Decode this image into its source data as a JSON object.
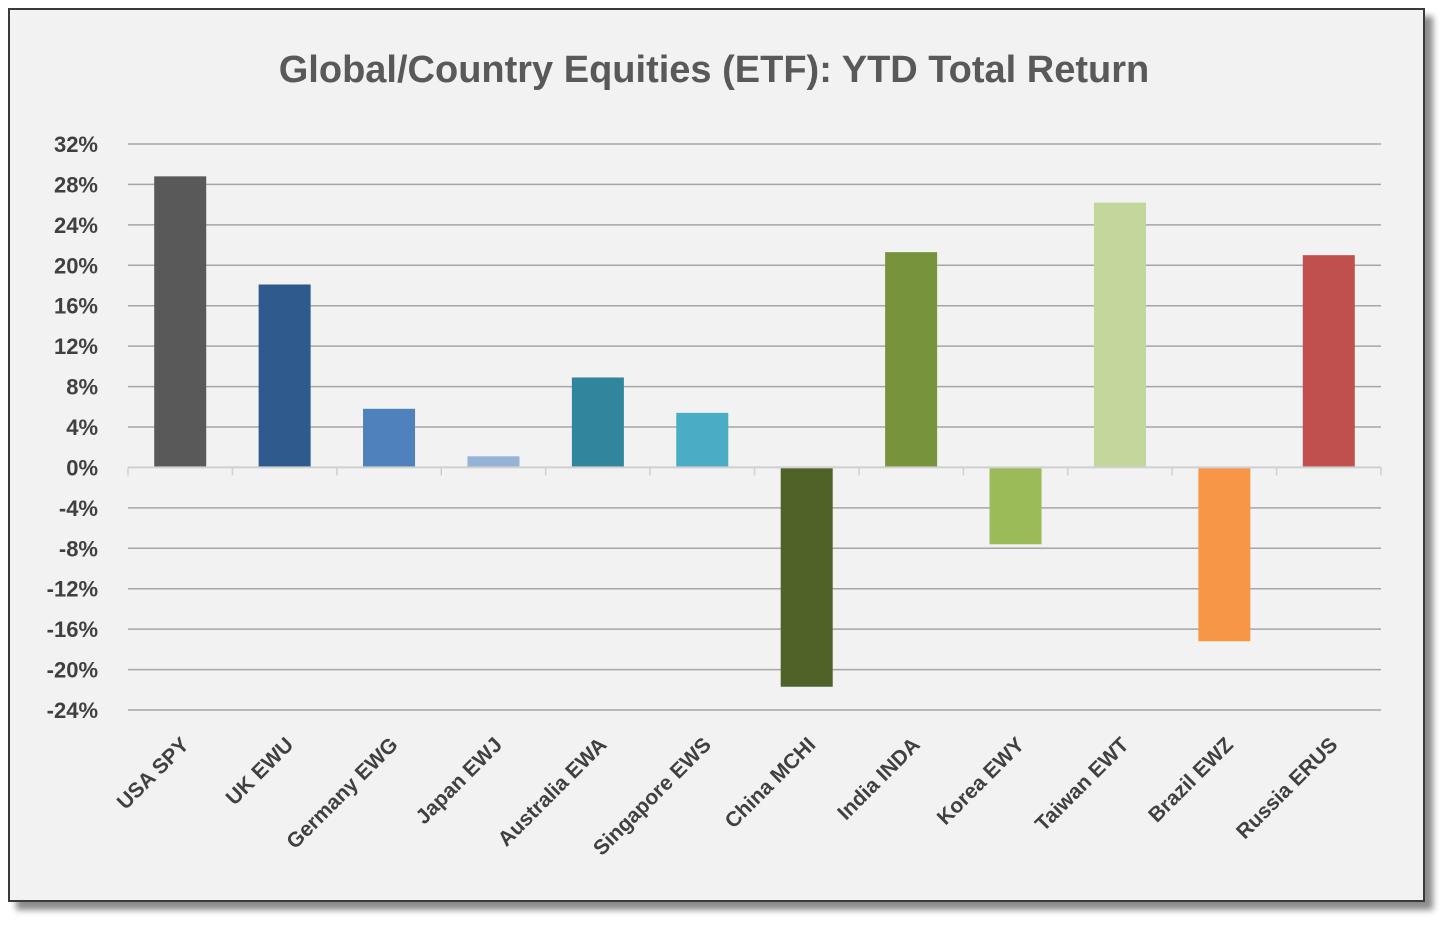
{
  "chart_data": {
    "type": "bar",
    "title": "Global/Country Equities (ETF): YTD Total Return",
    "xlabel": "",
    "ylabel": "",
    "ylim": [
      -24,
      32
    ],
    "yticks": [
      32,
      28,
      24,
      20,
      16,
      12,
      8,
      4,
      0,
      -4,
      -8,
      -12,
      -16,
      -20,
      -24
    ],
    "y_tick_format": "percent",
    "grid": true,
    "legend": "none",
    "categories": [
      "USA SPY",
      "UK EWU",
      "Germany EWG",
      "Japan EWJ",
      "Australia EWA",
      "Singapore EWS",
      "China MCHI",
      "India INDA",
      "Korea EWY",
      "Taiwan EWT",
      "Brazil EWZ",
      "Russia ERUS"
    ],
    "values": [
      28.8,
      18.1,
      5.8,
      1.1,
      8.9,
      5.4,
      -21.7,
      21.3,
      -7.6,
      26.2,
      -17.2,
      21.0
    ],
    "colors": [
      "#595959",
      "#2e5a8e",
      "#4f81bd",
      "#95b3d7",
      "#31859c",
      "#4bacc6",
      "#4f6228",
      "#77933c",
      "#9bbb59",
      "#c3d69b",
      "#f79646",
      "#c0504d"
    ]
  }
}
